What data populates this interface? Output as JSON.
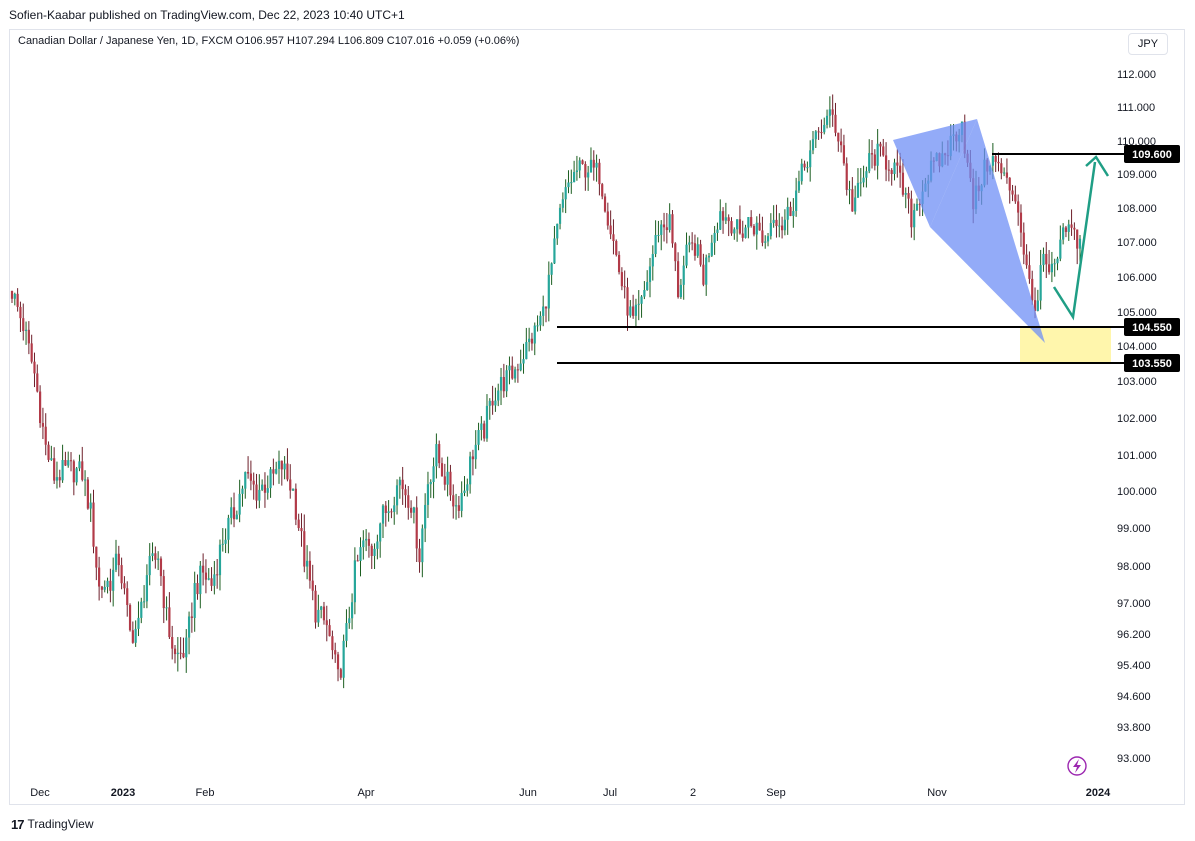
{
  "publisher": "Sofien-Kaabar published on TradingView.com, Dec 22, 2023 10:40 UTC+1",
  "header": "Canadian Dollar / Japanese Yen, 1D, FXCM  O106.957  H107.294  L106.809  C107.016  +0.059 (+0.06%)",
  "currency": "JPY",
  "footer": {
    "brand": "TradingView",
    "logo_icon": "tradingview-logo-icon"
  },
  "colors": {
    "up": "#26a69a",
    "down": "#b23a48",
    "up_dark": "#1b5e20",
    "down_dark": "#6d1f2a",
    "pattern": "#6f8ff5",
    "zone": "#fff59d",
    "arrow": "#1f9e85"
  },
  "chart_data": {
    "type": "candlestick",
    "symbol": "CADJPY",
    "timeframe": "1D",
    "ylim": [
      92.6,
      112.4
    ],
    "y_ticks": [
      "112.000",
      "111.000",
      "110.000",
      "109.000",
      "108.000",
      "107.000",
      "106.000",
      "105.000",
      "104.000",
      "103.000",
      "102.000",
      "101.000",
      "100.000",
      "99.000",
      "98.000",
      "97.000",
      "96.200",
      "95.400",
      "94.600",
      "93.800",
      "93.000"
    ],
    "x_ticks": [
      "Dec",
      "2023",
      "Feb",
      "Apr",
      "Jun",
      "Jul",
      "2",
      "Sep",
      "Nov",
      "2024"
    ],
    "price_path": [
      [
        0,
        105.6
      ],
      [
        4,
        104.6
      ],
      [
        8,
        103.2
      ],
      [
        12,
        101.2
      ],
      [
        15,
        100.4
      ],
      [
        20,
        100.6
      ],
      [
        25,
        100.5
      ],
      [
        28,
        99.4
      ],
      [
        31,
        97.4
      ],
      [
        35,
        97.6
      ],
      [
        38,
        98.2
      ],
      [
        42,
        96.2
      ],
      [
        45,
        96.4
      ],
      [
        48,
        97.8
      ],
      [
        52,
        98.3
      ],
      [
        55,
        96.6
      ],
      [
        58,
        95.6
      ],
      [
        62,
        95.8
      ],
      [
        65,
        97.4
      ],
      [
        68,
        97.8
      ],
      [
        71,
        97.5
      ],
      [
        75,
        98.7
      ],
      [
        79,
        99.4
      ],
      [
        83,
        100.4
      ],
      [
        87,
        100.0
      ],
      [
        92,
        100.3
      ],
      [
        96,
        100.7
      ],
      [
        100,
        100.0
      ],
      [
        104,
        98.2
      ],
      [
        108,
        96.8
      ],
      [
        112,
        96.4
      ],
      [
        116,
        95.0
      ],
      [
        119,
        96.2
      ],
      [
        122,
        97.8
      ],
      [
        125,
        98.6
      ],
      [
        128,
        98.4
      ],
      [
        131,
        99.2
      ],
      [
        134,
        99.6
      ],
      [
        138,
        100.3
      ],
      [
        142,
        99.7
      ],
      [
        145,
        98.3
      ],
      [
        148,
        100.3
      ],
      [
        151,
        101.0
      ],
      [
        155,
        100.2
      ],
      [
        158,
        99.6
      ],
      [
        161,
        100.1
      ],
      [
        164,
        101.1
      ],
      [
        168,
        101.7
      ],
      [
        171,
        102.6
      ],
      [
        175,
        103.0
      ],
      [
        178,
        103.2
      ],
      [
        182,
        103.8
      ],
      [
        186,
        104.4
      ],
      [
        189,
        105.0
      ],
      [
        192,
        106.3
      ],
      [
        195,
        107.8
      ],
      [
        198,
        108.7
      ],
      [
        201,
        109.1
      ],
      [
        205,
        109.2
      ],
      [
        209,
        109.0
      ],
      [
        212,
        107.8
      ],
      [
        215,
        106.6
      ],
      [
        218,
        105.4
      ],
      [
        221,
        104.7
      ],
      [
        224,
        105.2
      ],
      [
        227,
        106.3
      ],
      [
        230,
        107.4
      ],
      [
        234,
        107.6
      ],
      [
        237,
        105.6
      ],
      [
        240,
        106.6
      ],
      [
        243,
        106.9
      ],
      [
        246,
        106.0
      ],
      [
        249,
        107.2
      ],
      [
        252,
        107.9
      ],
      [
        256,
        107.6
      ],
      [
        259,
        107.2
      ],
      [
        262,
        107.6
      ],
      [
        265,
        107.4
      ],
      [
        268,
        107.0
      ],
      [
        271,
        107.9
      ],
      [
        274,
        107.5
      ],
      [
        277,
        108.0
      ],
      [
        280,
        108.7
      ],
      [
        283,
        109.5
      ],
      [
        286,
        110.0
      ],
      [
        289,
        110.6
      ],
      [
        292,
        110.7
      ],
      [
        295,
        109.9
      ],
      [
        297,
        108.7
      ],
      [
        299,
        108.1
      ],
      [
        302,
        108.6
      ],
      [
        305,
        109.4
      ],
      [
        308,
        109.6
      ],
      [
        311,
        109.4
      ],
      [
        314,
        109.2
      ],
      [
        317,
        108.5
      ],
      [
        320,
        107.7
      ],
      [
        323,
        108.4
      ],
      [
        326,
        109.0
      ],
      [
        329,
        109.3
      ],
      [
        332,
        109.6
      ],
      [
        335,
        110.1
      ],
      [
        338,
        110.6
      ],
      [
        340,
        109.2
      ],
      [
        342,
        108.1
      ],
      [
        345,
        108.9
      ],
      [
        348,
        109.5
      ],
      [
        351,
        109.2
      ],
      [
        354,
        108.7
      ],
      [
        357,
        108.4
      ],
      [
        359,
        107.4
      ],
      [
        361,
        106.2
      ],
      [
        363,
        105.3
      ],
      [
        365,
        105.4
      ],
      [
        367,
        106.6
      ],
      [
        369,
        105.9
      ],
      [
        372,
        106.5
      ],
      [
        375,
        107.4
      ],
      [
        378,
        107.2
      ],
      [
        380,
        107.0
      ]
    ]
  }
}
